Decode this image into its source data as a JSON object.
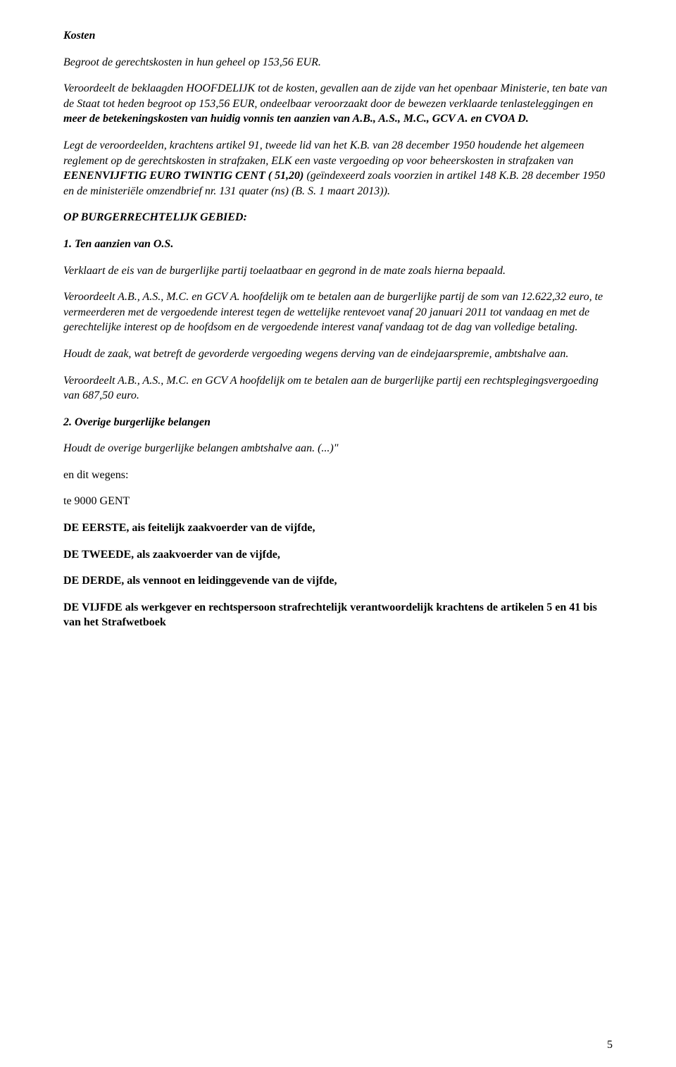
{
  "kosten_heading": "Kosten",
  "p1": "Begroot de gerechtskosten in hun geheel op 153,56 EUR.",
  "p2a": "Veroordeelt de beklaagden HOOFDELIJK tot de kosten, gevallen aan de zijde van het openbaar Ministerie, ten bate van de Staat tot heden begroot op 153,56 EUR, ondeelbaar veroorzaakt door de bewezen verklaarde tenlasteleggingen en ",
  "p2b": "meer de betekeningskosten van huidig vonnis ten aanzien van A.B., A.S., M.C., GCV A. en CVOA D.",
  "p3a": "Legt de veroordeelden, krachtens artikel 91, tweede lid van het K.B. van 28 december 1950 houdende het algemeen reglement op de gerechtskosten in strafzaken, ELK een vaste vergoeding op voor beheerskosten in strafzaken van ",
  "p3b": "EENENVIJFTIG EURO TWINTIG CENT ( ",
  "p3c": "51,20)",
  "p3d": " (geïndexeerd zoals voorzien in artikel 148 K.B. 28 december 1950 en de ministeriële omzendbrief nr. 131 quater (ns) (B. S. 1 maart 2013)).",
  "burger_heading": "OP BURGERRECHTELIJK GEBIED:",
  "h1": "1. Ten aanzien van O.S.",
  "p4": "Verklaart de eis van de burgerlijke partij toelaatbaar en gegrond in de mate zoals hierna bepaald.",
  "p5": "Veroordeelt A.B., A.S., M.C. en GCV A. hoofdelijk om te betalen aan de burgerlijke partij de som van 12.622,32 euro, te vermeerderen met de vergoedende interest tegen de wettelijke rentevoet vanaf 20 januari 2011 tot vandaag en met de gerechtelijke interest op de hoofdsom en de vergoedende interest vanaf vandaag tot de dag van volledige betaling.",
  "p6": "Houdt de zaak, wat betreft de gevorderde vergoeding wegens derving van de eindejaarspremie, ambtshalve aan.",
  "p7": "Veroordeelt A.B., A.S., M.C. en GCV A hoofdelijk om te betalen aan de burgerlijke partij een rechtsplegingsvergoeding van 687,50 euro.",
  "h2": "2. Overige burgerlijke belangen",
  "p8": "Houdt de overige burgerlijke belangen ambtshalve aan. (...)\"",
  "p9": "en dit wegens:",
  "p10": "te 9000 GENT",
  "p11": "DE EERSTE, ais feitelijk zaakvoerder van de vijfde,",
  "p12": "DE TWEEDE, als zaakvoerder van de vijfde,",
  "p13": "DE DERDE, als vennoot en leidinggevende van de vijfde,",
  "p14": "DE VIJFDE als werkgever en rechtspersoon strafrechtelijk verantwoordelijk krachtens de artikelen 5 en 41 bis van het Strafwetboek",
  "page_number": "5"
}
